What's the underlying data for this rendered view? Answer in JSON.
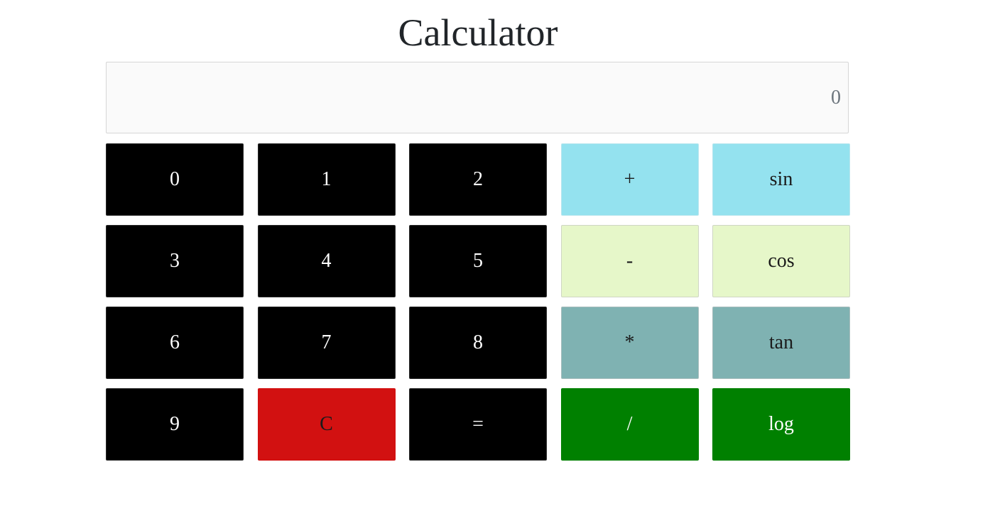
{
  "title": "Calculator",
  "display": {
    "value": "0"
  },
  "keys": [
    {
      "label": "0",
      "name": "key-0",
      "style": "num"
    },
    {
      "label": "1",
      "name": "key-1",
      "style": "num"
    },
    {
      "label": "2",
      "name": "key-2",
      "style": "num"
    },
    {
      "label": "+",
      "name": "key-plus",
      "style": "cyan"
    },
    {
      "label": "sin",
      "name": "key-sin",
      "style": "cyan"
    },
    {
      "label": "3",
      "name": "key-3",
      "style": "num"
    },
    {
      "label": "4",
      "name": "key-4",
      "style": "num"
    },
    {
      "label": "5",
      "name": "key-5",
      "style": "num"
    },
    {
      "label": "-",
      "name": "key-minus",
      "style": "lime"
    },
    {
      "label": "cos",
      "name": "key-cos",
      "style": "lime"
    },
    {
      "label": "6",
      "name": "key-6",
      "style": "num"
    },
    {
      "label": "7",
      "name": "key-7",
      "style": "num"
    },
    {
      "label": "8",
      "name": "key-8",
      "style": "num"
    },
    {
      "label": "*",
      "name": "key-multiply",
      "style": "teal"
    },
    {
      "label": "tan",
      "name": "key-tan",
      "style": "teal"
    },
    {
      "label": "9",
      "name": "key-9",
      "style": "num"
    },
    {
      "label": "C",
      "name": "key-clear",
      "style": "clear"
    },
    {
      "label": "=",
      "name": "key-equals",
      "style": "num"
    },
    {
      "label": "/",
      "name": "key-divide",
      "style": "green"
    },
    {
      "label": "log",
      "name": "key-log",
      "style": "green"
    }
  ],
  "colors": {
    "num": "#000000",
    "clear": "#d21111",
    "cyan": "#94e2ef",
    "lime": "#e6f7c9",
    "teal": "#7fb2b2",
    "green": "#008000"
  }
}
